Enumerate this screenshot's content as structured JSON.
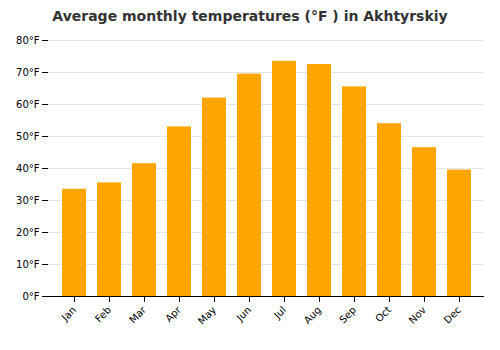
{
  "chart_data": {
    "type": "bar",
    "title": "Average monthly temperatures (°F ) in Akhtyrskiy",
    "categories": [
      "Jan",
      "Feb",
      "Mar",
      "Apr",
      "May",
      "Jun",
      "Jul",
      "Aug",
      "Sep",
      "Oct",
      "Nov",
      "Dec"
    ],
    "values": [
      33.5,
      35.5,
      41.5,
      53.0,
      62.0,
      69.5,
      73.5,
      72.5,
      65.5,
      54.0,
      46.5,
      39.5
    ],
    "color": "#FFA500",
    "ylim": [
      0,
      80
    ],
    "yticks": [
      {
        "value": 0,
        "label": "0°F"
      },
      {
        "value": 10,
        "label": "10°F"
      },
      {
        "value": 20,
        "label": "20°F"
      },
      {
        "value": 30,
        "label": "30°F"
      },
      {
        "value": 40,
        "label": "40°F"
      },
      {
        "value": 50,
        "label": "50°F"
      },
      {
        "value": 60,
        "label": "60°F"
      },
      {
        "value": 70,
        "label": "70°F"
      },
      {
        "value": 80,
        "label": "80°F"
      }
    ],
    "grid": true
  }
}
